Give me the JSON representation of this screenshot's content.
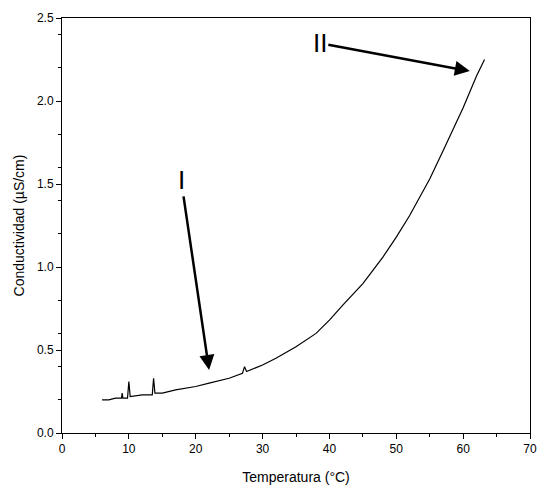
{
  "chart_data": {
    "type": "line",
    "x_label": "Temperatura (°C)",
    "y_label": "Conductividad (µS/cm)",
    "color": "#000000",
    "x": [
      6,
      7,
      8,
      8.9,
      9.0,
      9.1,
      9.8,
      10.0,
      10.2,
      12,
      13.5,
      13.7,
      13.9,
      15,
      17,
      20,
      22,
      25,
      27,
      27.3,
      27.6,
      30,
      32,
      35,
      38,
      40,
      42,
      45,
      48,
      50,
      52,
      55,
      57,
      60,
      62,
      63.2
    ],
    "values": [
      0.2,
      0.2,
      0.21,
      0.21,
      0.24,
      0.21,
      0.21,
      0.31,
      0.22,
      0.23,
      0.23,
      0.33,
      0.24,
      0.24,
      0.26,
      0.28,
      0.3,
      0.33,
      0.36,
      0.4,
      0.37,
      0.41,
      0.45,
      0.52,
      0.6,
      0.68,
      0.77,
      0.9,
      1.06,
      1.18,
      1.31,
      1.53,
      1.7,
      1.96,
      2.15,
      2.25
    ],
    "xlim": [
      0,
      70
    ],
    "ylim": [
      0,
      2.5
    ],
    "xticks": [
      0,
      10,
      20,
      30,
      40,
      50,
      60,
      70
    ],
    "yticks": [
      {
        "value": 0,
        "label": "0.0"
      },
      {
        "value": 0.5,
        "label": "0.5"
      },
      {
        "value": 1,
        "label": "1.0"
      },
      {
        "value": 1.5,
        "label": "1.5"
      },
      {
        "value": 2,
        "label": "2.0"
      },
      {
        "value": 2.5,
        "label": "2.5"
      }
    ],
    "grid": false,
    "annotations": [
      {
        "text": "I",
        "x": 22,
        "y": 0.38
      },
      {
        "text": "II",
        "x": 61,
        "y": 2.18
      }
    ]
  }
}
